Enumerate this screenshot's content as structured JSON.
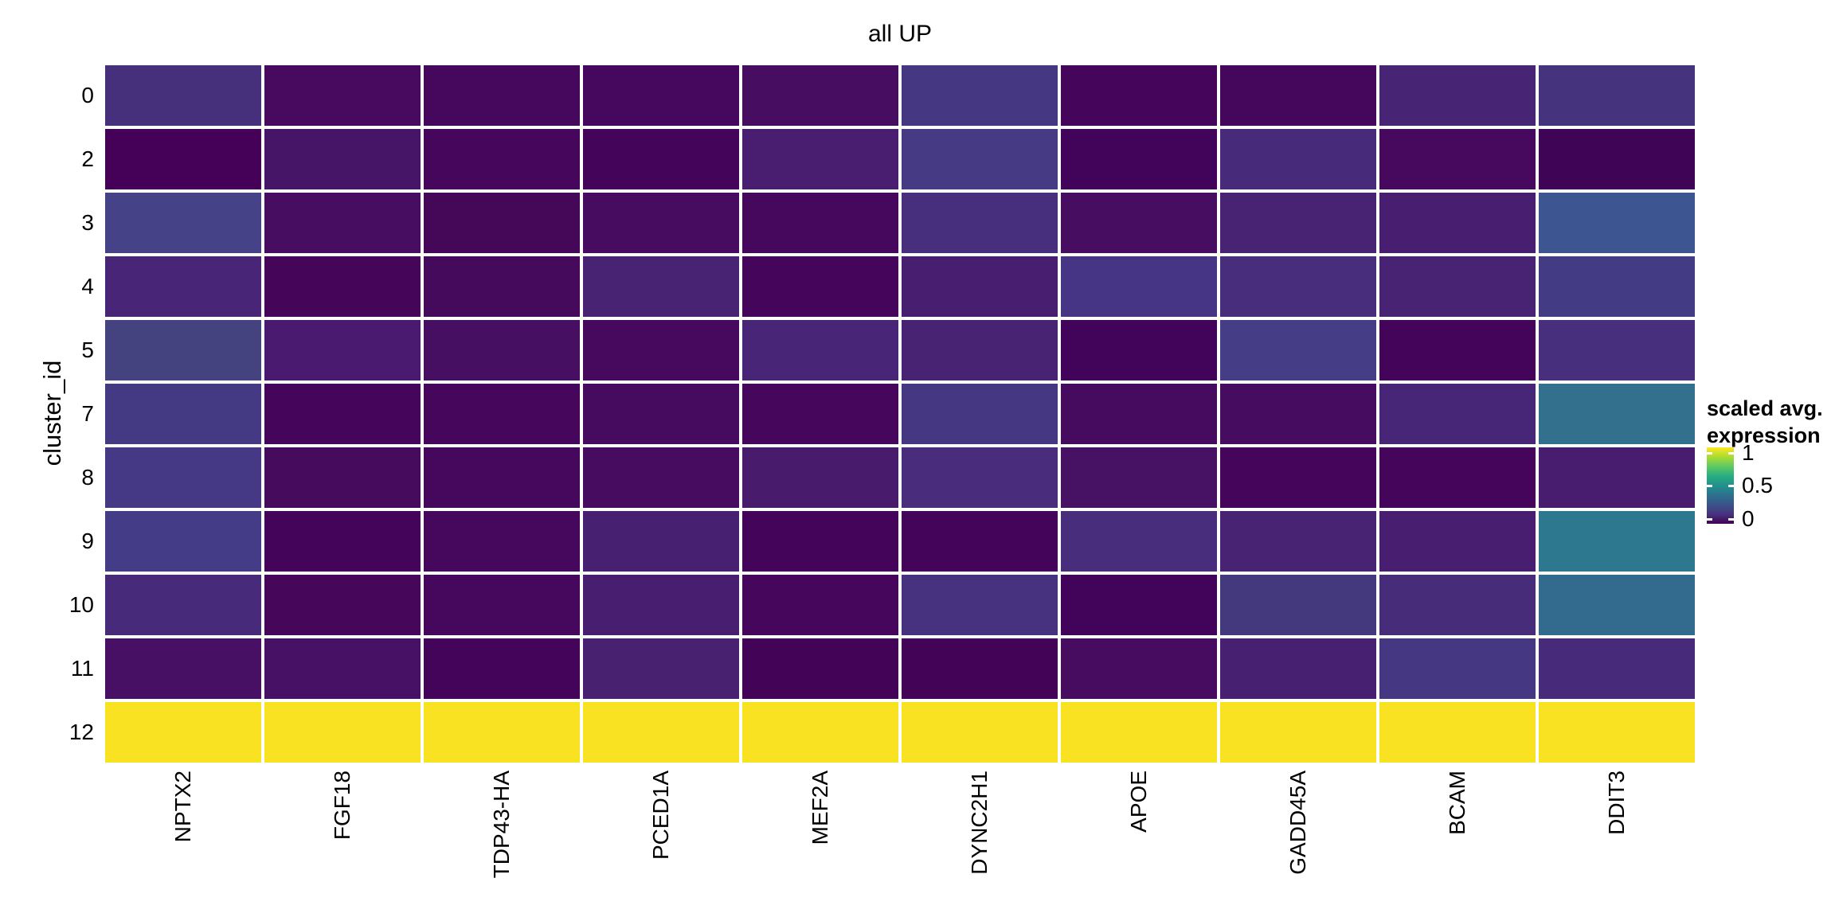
{
  "chart_data": {
    "type": "heatmap",
    "title": "all UP",
    "xlabel": "",
    "ylabel": "cluster_id",
    "columns": [
      "NPTX2",
      "FGF18",
      "TDP43-HA",
      "PCED1A",
      "MEF2A",
      "DYNC2H1",
      "APOE",
      "GADD45A",
      "BCAM",
      "DDIT3"
    ],
    "rows": [
      "0",
      "2",
      "3",
      "4",
      "5",
      "7",
      "8",
      "9",
      "10",
      "11",
      "12"
    ],
    "values": [
      [
        0.15,
        0.05,
        0.04,
        0.04,
        0.06,
        0.16,
        0.02,
        0.04,
        0.1,
        0.15
      ],
      [
        0.01,
        0.07,
        0.03,
        0.02,
        0.09,
        0.17,
        0.01,
        0.12,
        0.05,
        0.0
      ],
      [
        0.19,
        0.06,
        0.03,
        0.05,
        0.04,
        0.13,
        0.06,
        0.1,
        0.09,
        0.26
      ],
      [
        0.11,
        0.03,
        0.05,
        0.1,
        0.02,
        0.09,
        0.15,
        0.13,
        0.1,
        0.17
      ],
      [
        0.19,
        0.08,
        0.06,
        0.05,
        0.11,
        0.1,
        0.01,
        0.18,
        0.01,
        0.13
      ],
      [
        0.17,
        0.02,
        0.03,
        0.05,
        0.03,
        0.16,
        0.05,
        0.05,
        0.11,
        0.35
      ],
      [
        0.16,
        0.05,
        0.04,
        0.05,
        0.08,
        0.12,
        0.06,
        0.02,
        0.02,
        0.08
      ],
      [
        0.18,
        0.02,
        0.04,
        0.09,
        0.01,
        0.01,
        0.13,
        0.1,
        0.09,
        0.4
      ],
      [
        0.12,
        0.03,
        0.04,
        0.09,
        0.03,
        0.15,
        0.01,
        0.17,
        0.12,
        0.36
      ],
      [
        0.06,
        0.06,
        0.02,
        0.09,
        0.01,
        0.01,
        0.05,
        0.09,
        0.16,
        0.12
      ],
      [
        1,
        1,
        1,
        1,
        1,
        1,
        1,
        1,
        1,
        1
      ]
    ],
    "cell_colors": [
      [
        "#46307c",
        "#470a5e",
        "#45085c",
        "#46085e",
        "#470d60",
        "#453781",
        "#44055b",
        "#45075c",
        "#482475",
        "#46337e"
      ],
      [
        "#450158",
        "#471567",
        "#45065c",
        "#44045a",
        "#491d6f",
        "#473a84",
        "#42045a",
        "#472a7a",
        "#46095d",
        "#400456"
      ],
      [
        "#454287",
        "#470d60",
        "#450859",
        "#470b5f",
        "#45085c",
        "#472f7d",
        "#470d60",
        "#482373",
        "#481f70",
        "#3d5590"
      ],
      [
        "#482576",
        "#45065a",
        "#460a5d",
        "#482373",
        "#44055a",
        "#481e70",
        "#463585",
        "#472d7b",
        "#482373",
        "#443b85"
      ],
      [
        "#444380",
        "#4a1970",
        "#470f62",
        "#46095d",
        "#482576",
        "#482273",
        "#42045a",
        "#463d87",
        "#43045a",
        "#472f7d"
      ],
      [
        "#443a83",
        "#44055a",
        "#45065b",
        "#460a5e",
        "#45065b",
        "#453781",
        "#460b5e",
        "#460c60",
        "#482677",
        "#32708e"
      ],
      [
        "#453884",
        "#470b5e",
        "#46085c",
        "#470c5f",
        "#481b6d",
        "#492c7c",
        "#471164",
        "#44055a",
        "#44055a",
        "#481d6f"
      ],
      [
        "#443c86",
        "#44045a",
        "#45085c",
        "#482071",
        "#440459",
        "#440459",
        "#472d7b",
        "#482373",
        "#481f70",
        "#2d788e"
      ],
      [
        "#472a7a",
        "#46075b",
        "#45085c",
        "#481f70",
        "#45065b",
        "#46327e",
        "#42045a",
        "#45397e",
        "#472c7a",
        "#336b8e"
      ],
      [
        "#471064",
        "#471166",
        "#43045a",
        "#482171",
        "#430457",
        "#430457",
        "#470c5f",
        "#482071",
        "#453781",
        "#472a7a"
      ],
      [
        "#f8e221",
        "#f8e221",
        "#f8e221",
        "#f8e221",
        "#f8e221",
        "#f8e221",
        "#f8e221",
        "#f8e221",
        "#f8e221",
        "#f8e221"
      ]
    ],
    "colorscale": "viridis",
    "domain": [
      0,
      1
    ],
    "grid": false,
    "legend": {
      "position": "right",
      "title_lines": [
        "scaled avg.",
        "expression"
      ],
      "ticks": [
        "1",
        "0.5",
        "0"
      ],
      "tick_values": [
        1,
        0.5,
        0
      ],
      "gradient_stops_bottom_to_top": [
        "#440154",
        "#46327e",
        "#3b528b",
        "#2c718e",
        "#21918c",
        "#27ad81",
        "#5ec962",
        "#aadc32",
        "#fde725"
      ]
    }
  },
  "colors": {
    "background": "#ffffff",
    "text": "#000000",
    "gridline": "#ffffff"
  }
}
